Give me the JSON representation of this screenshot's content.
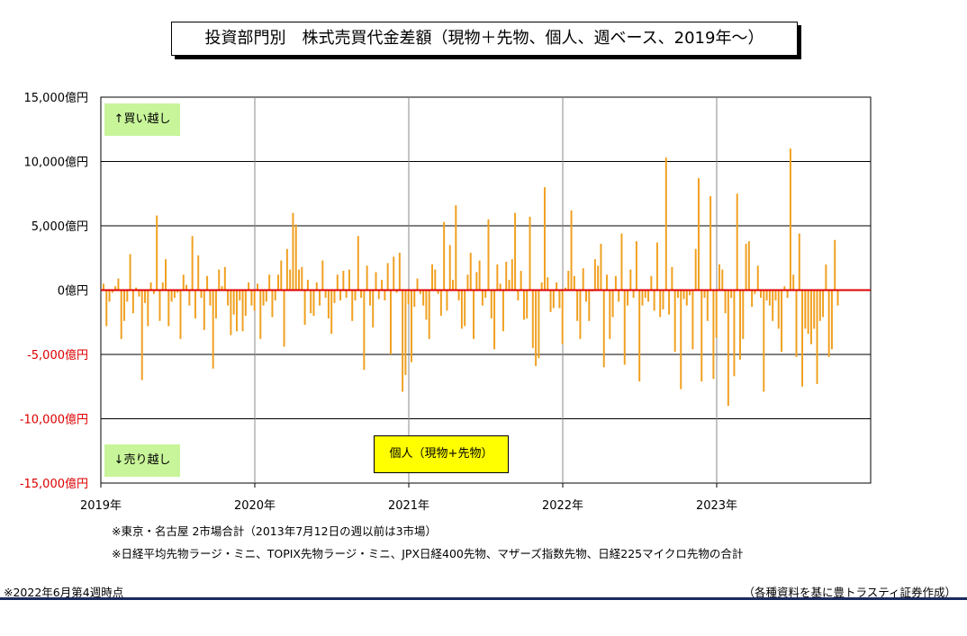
{
  "title": "投資部門別　株式売買代金差額（現物＋先物、個人、週ベース、2019年～）",
  "notes": {
    "note1": "※東京・名古屋 2市場合計（2013年7月12日の週以前は3市場）",
    "note2": "※日経平均先物ラージ・ミニ、TOPIX先物ラージ・ミニ、JPX日経400先物、マザーズ指数先物、日経225マイクロ先物の合計",
    "timestamp": "※2022年6月第4週時点",
    "source": "（各種資料を基に豊トラスティ証券作成）"
  },
  "chart_data": {
    "type": "bar",
    "title": "投資部門別　株式売買代金差額（現物＋先物、個人、週ベース、2019年～）",
    "series_label": "個人（現物+先物）",
    "annotations": {
      "buy": "↑買い越し",
      "sell": "↓売り越し"
    },
    "ylim": [
      -15000,
      15000
    ],
    "yticks": [
      15000,
      10000,
      5000,
      0,
      -5000,
      -10000,
      -15000
    ],
    "ytick_labels": [
      "15,000億円",
      "10,000億円",
      "5,000億円",
      "0億円",
      "-5,000億円",
      "-10,000億円",
      "-15,000億円"
    ],
    "xtick_labels": [
      "2019年",
      "2020年",
      "2021年",
      "2022年",
      "2023年"
    ],
    "x_start_year": 2019,
    "x_end_year": 2024,
    "grid": true,
    "colors": {
      "bar": "#f0a020",
      "zero_line": "#dd0000",
      "negative_tick": "#dd0000",
      "annot_bg": "#c8f59a",
      "legend_bg": "#ffff00"
    },
    "values": [
      500,
      -2800,
      -900,
      -200,
      300,
      900,
      -3800,
      -2400,
      -900,
      2800,
      -1800,
      200,
      -500,
      -7000,
      -1000,
      -2800,
      600,
      -300,
      5800,
      -2400,
      600,
      2400,
      -2800,
      -900,
      -600,
      -200,
      -3800,
      1200,
      400,
      -1200,
      4200,
      -2200,
      2700,
      -600,
      -3100,
      1100,
      -1200,
      -6100,
      -2200,
      1600,
      300,
      1800,
      -1200,
      -3500,
      -1900,
      -3200,
      -800,
      -3200,
      -2000,
      600,
      -1200,
      -1600,
      500,
      -3800,
      -1200,
      -900,
      1200,
      -2100,
      -800,
      1200,
      2300,
      -4400,
      3200,
      1600,
      6000,
      5100,
      1600,
      1800,
      -2700,
      800,
      -1800,
      -2000,
      600,
      -1200,
      2300,
      -600,
      -2200,
      -3400,
      -1000,
      1200,
      -800,
      1500,
      -600,
      1600,
      -2400,
      -800,
      4200,
      -600,
      -6200,
      1900,
      -1200,
      -2900,
      1400,
      -700,
      800,
      -800,
      2100,
      -5000,
      2600,
      -200,
      2900,
      -7900,
      -6600,
      -1100,
      -5600,
      -1300,
      900,
      -300,
      -1200,
      -2300,
      -3800,
      2000,
      1600,
      -300,
      -2000,
      5300,
      -1600,
      3500,
      800,
      6600,
      -800,
      -3000,
      -2800,
      1200,
      2900,
      -3800,
      1400,
      2300,
      -1200,
      -600,
      5500,
      -2200,
      -4600,
      2000,
      500,
      -3200,
      2200,
      800,
      2400,
      6000,
      -800,
      1500,
      -2300,
      -2200,
      5700,
      -4500,
      -5900,
      -5300,
      600,
      8000,
      1000,
      -1700,
      -1400,
      600,
      -1400,
      -4200,
      200,
      1500,
      6200,
      1100,
      -2400,
      -3800,
      1700,
      -900,
      -2400,
      -100,
      2400,
      1900,
      3600,
      -6000,
      1200,
      -3800,
      -2100,
      1100,
      -900,
      4400,
      -5800,
      -1200,
      1600,
      -600,
      3800,
      -7100,
      -1200,
      -600,
      -900,
      1100,
      -1600,
      3700,
      -2100,
      -1500,
      10300,
      -1900,
      1800,
      -4800,
      -600,
      -7700,
      -700,
      -1200,
      -400,
      -4600,
      3200,
      8700,
      -7100,
      -600,
      -2400,
      7300,
      -6900,
      -3700,
      2000,
      1600,
      -1800,
      -9000,
      -600,
      -6700,
      7500,
      -5400,
      -3800,
      3600,
      3800,
      -1300,
      -300,
      1900,
      -600,
      -7900,
      -800,
      -1200,
      -2400,
      -800,
      -3000,
      -4800,
      300,
      -600,
      11000,
      1200,
      -5200,
      4400,
      -7500,
      -3000,
      -3400,
      -4200,
      -3000,
      -7300,
      -2400,
      -2100,
      2000,
      -5200,
      -4600,
      3900,
      -1200
    ]
  }
}
